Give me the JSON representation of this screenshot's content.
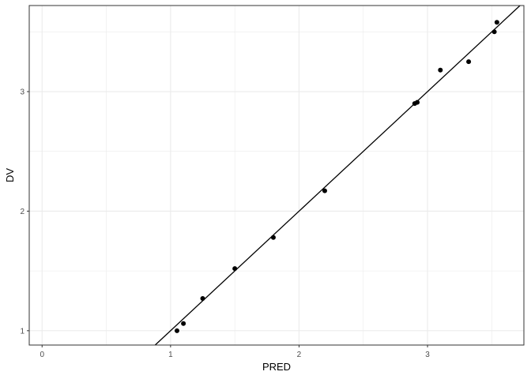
{
  "chart_data": {
    "type": "scatter",
    "title": "",
    "xlabel": "PRED",
    "ylabel": "DV",
    "xlim": [
      -0.1,
      3.75
    ],
    "ylim": [
      0.88,
      3.72
    ],
    "x_ticks": [
      0,
      1,
      2,
      3
    ],
    "y_ticks": [
      1,
      2,
      3
    ],
    "x_minor_ticks": [
      0.5,
      1.5,
      2.5,
      3.5
    ],
    "y_minor_ticks": [
      1.5,
      2.5,
      3.5
    ],
    "grid": true,
    "points": [
      {
        "x": 1.05,
        "y": 1.0
      },
      {
        "x": 1.1,
        "y": 1.06
      },
      {
        "x": 1.25,
        "y": 1.27
      },
      {
        "x": 1.5,
        "y": 1.52
      },
      {
        "x": 1.8,
        "y": 1.78
      },
      {
        "x": 2.2,
        "y": 2.17
      },
      {
        "x": 2.9,
        "y": 2.9
      },
      {
        "x": 2.92,
        "y": 2.91
      },
      {
        "x": 3.1,
        "y": 3.18
      },
      {
        "x": 3.32,
        "y": 3.25
      },
      {
        "x": 3.52,
        "y": 3.5
      },
      {
        "x": 3.54,
        "y": 3.58
      }
    ],
    "reference_line": {
      "slope": 1,
      "intercept": 0
    },
    "colors": {
      "points": "#000000",
      "line": "#000000",
      "grid": "#ebebeb",
      "panel_border": "#333333"
    }
  }
}
